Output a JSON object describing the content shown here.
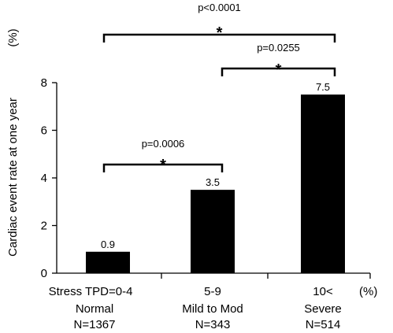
{
  "chart_data": {
    "type": "bar",
    "categories": [
      "Stress TPD=0-4",
      "5-9",
      "10<"
    ],
    "category_sublabels": [
      [
        "Normal",
        "N=1367"
      ],
      [
        "Mild to Mod",
        "N=343"
      ],
      [
        "Severe",
        "N=514"
      ]
    ],
    "x_unit": "(%)",
    "values": [
      0.9,
      3.5,
      7.5
    ],
    "value_labels": [
      "0.9",
      "3.5",
      "7.5"
    ],
    "ylabel": "Cardiac event rate at one year",
    "y_unit": "(%)",
    "ylim": [
      0,
      8
    ],
    "yticks": [
      0,
      2,
      4,
      6,
      8
    ],
    "bar_color": "#000000",
    "significance": [
      {
        "from": 0,
        "to": 1,
        "p": "p=0.0006",
        "mark": "*"
      },
      {
        "from": 1,
        "to": 2,
        "p": "p=0.0255",
        "mark": "*"
      },
      {
        "from": 0,
        "to": 2,
        "p": "p<0.0001",
        "mark": "*"
      }
    ]
  }
}
